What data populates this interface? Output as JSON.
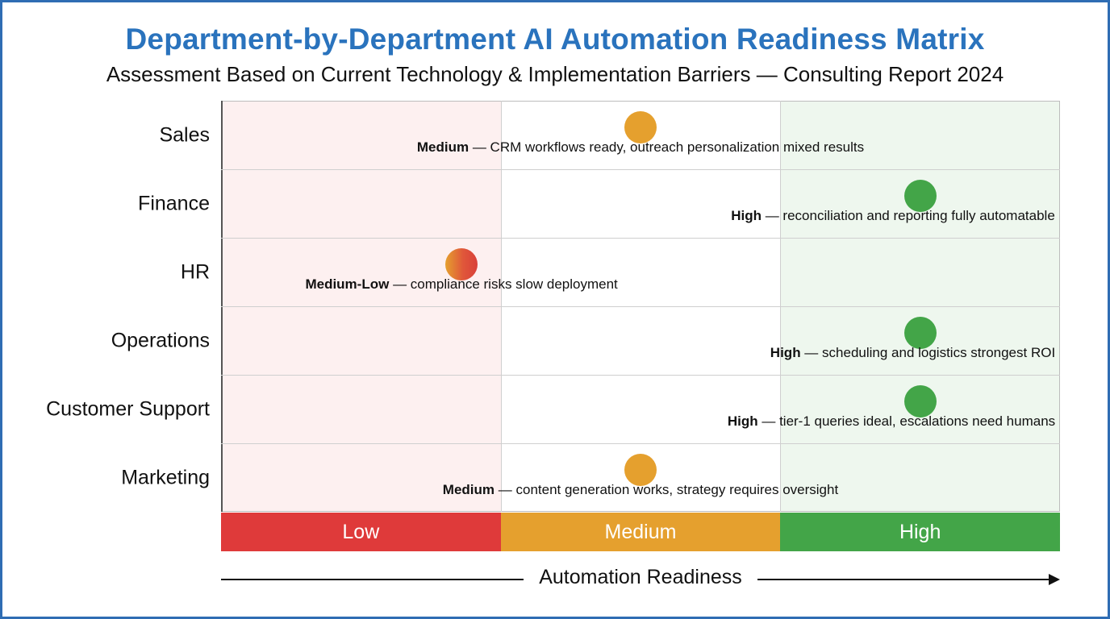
{
  "chart_data": {
    "type": "scatter",
    "title": "Department-by-Department AI Automation Readiness Matrix",
    "subtitle": "Assessment Based on Current Technology & Implementation Barriers — Consulting Report 2024",
    "xlabel": "Automation Readiness",
    "ylabel": "",
    "x_categories": [
      "Low",
      "Medium",
      "High"
    ],
    "xlim": [
      0,
      3
    ],
    "rows": [
      "Sales",
      "Finance",
      "HR",
      "Operations",
      "Customer Support",
      "Marketing"
    ],
    "points": [
      {
        "department": "Sales",
        "level": "Medium",
        "x": 1.5,
        "detail": "CRM workflows ready, outreach personalization mixed results",
        "color": "#e5a02e"
      },
      {
        "department": "Finance",
        "level": "High",
        "x": 2.5,
        "detail": "reconciliation and reporting fully automatable",
        "color": "#43a548"
      },
      {
        "department": "HR",
        "level": "Medium-Low",
        "x": 0.86,
        "detail": "compliance risks slow deployment",
        "color": "#e0573a"
      },
      {
        "department": "Operations",
        "level": "High",
        "x": 2.5,
        "detail": "scheduling and logistics strongest ROI",
        "color": "#43a548"
      },
      {
        "department": "Customer Support",
        "level": "High",
        "x": 2.5,
        "detail": "tier-1 queries ideal, escalations need humans",
        "color": "#43a548"
      },
      {
        "department": "Marketing",
        "level": "Medium",
        "x": 1.5,
        "detail": "content generation works, strategy requires oversight",
        "color": "#e5a02e"
      }
    ],
    "zones": [
      {
        "label": "Low",
        "band_color": "#df3a3a",
        "bg_color": "#fdf0f0"
      },
      {
        "label": "Medium",
        "band_color": "#e5a02e",
        "bg_color": "#ffffff"
      },
      {
        "label": "High",
        "band_color": "#43a548",
        "bg_color": "#eef7ee"
      }
    ],
    "grid": true
  },
  "colors": {
    "title": "#2a73bd",
    "frame": "#2f6db3"
  }
}
